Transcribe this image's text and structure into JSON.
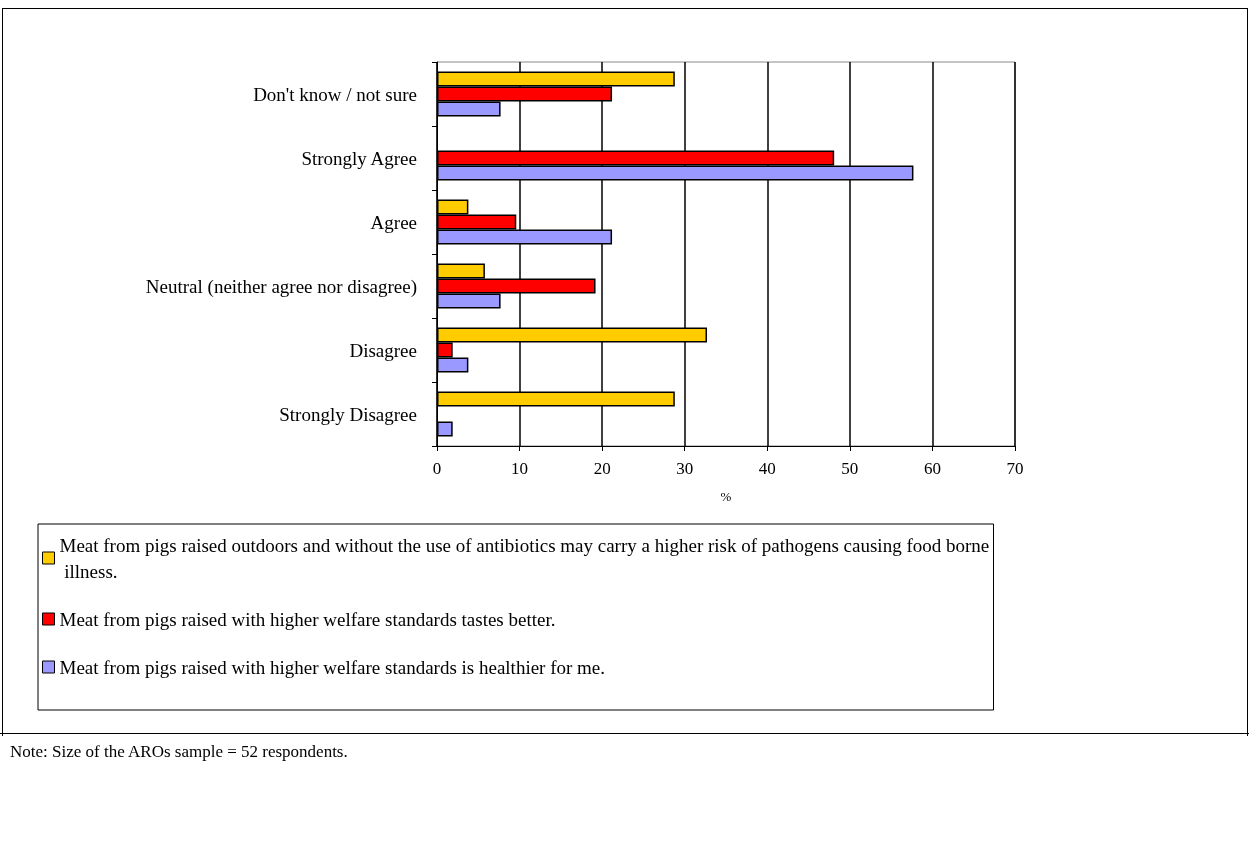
{
  "chart_data": {
    "type": "bar",
    "orientation": "horizontal",
    "xlabel": "%",
    "categories": [
      "Don't know / not sure",
      "Strongly Agree",
      "Agree",
      "Neutral (neither agree nor disagree)",
      "Disagree",
      "Strongly Disagree"
    ],
    "series": [
      {
        "name": "Meat from pigs raised outdoors and without the use of antibiotics may carry a higher risk of pathogens causing food borne illness.",
        "color": "#ffcc00",
        "values": [
          28.8,
          null,
          3.8,
          5.8,
          32.7,
          28.8
        ]
      },
      {
        "name": "Meat from pigs raised with higher welfare standards tastes better.",
        "color": "#ff0000",
        "values": [
          21.2,
          48.1,
          9.6,
          19.2,
          1.9,
          null
        ]
      },
      {
        "name": "Meat from pigs raised with higher welfare standards is healthier for me.",
        "color": "#9999ff",
        "values": [
          7.7,
          57.7,
          21.2,
          7.7,
          3.8,
          1.9
        ]
      }
    ],
    "xlim": [
      0,
      70
    ],
    "xticks": [
      0,
      10,
      20,
      30,
      40,
      50,
      60,
      70
    ],
    "grid": "x",
    "legend": "bottom",
    "annotations": [
      "Note: Size of the AROs sample = 52 respondents."
    ]
  }
}
